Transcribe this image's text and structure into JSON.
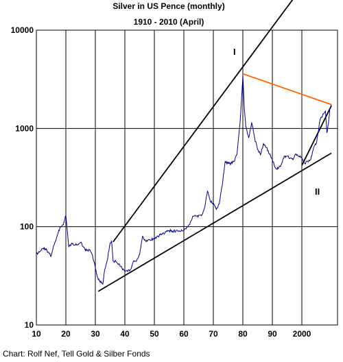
{
  "chart_data": {
    "type": "line",
    "title": "Silver in US Pence (monthly)",
    "subtitle": "1910 - 2010 (April)",
    "y_scale": "log",
    "ylim": [
      10,
      10000
    ],
    "xlim": [
      1910,
      2010
    ],
    "x_tick_labels": [
      "10",
      "20",
      "30",
      "40",
      "50",
      "60",
      "70",
      "80",
      "90",
      "2000"
    ],
    "x_tick_years": [
      1910,
      1920,
      1930,
      1940,
      1950,
      1960,
      1970,
      1980,
      1990,
      2000
    ],
    "y_tick_labels": [
      "10",
      "100",
      "1000",
      "10000"
    ],
    "y_tick_values": [
      10,
      100,
      1000,
      10000
    ],
    "grid": true,
    "series": [
      {
        "color": "#000080",
        "x": [
          1910,
          1911,
          1912,
          1913,
          1914,
          1915,
          1916,
          1917,
          1918,
          1919,
          1919.5,
          1920,
          1920.5,
          1921,
          1922,
          1923,
          1924,
          1925,
          1926,
          1927,
          1928,
          1929,
          1930,
          1931,
          1931.5,
          1932,
          1932.5,
          1933,
          1934,
          1935,
          1935.5,
          1936,
          1937,
          1938,
          1939,
          1940,
          1941,
          1942,
          1943,
          1944,
          1945,
          1946,
          1947,
          1948,
          1950,
          1952,
          1955,
          1958,
          1960,
          1962,
          1963,
          1964,
          1966,
          1967,
          1968,
          1969,
          1970,
          1971,
          1972,
          1973,
          1974,
          1975,
          1976,
          1977,
          1978,
          1979,
          1979.5,
          1980,
          1980.5,
          1981,
          1982,
          1983,
          1984,
          1985,
          1986,
          1987,
          1988,
          1989,
          1990,
          1991,
          1992,
          1993,
          1994,
          1995,
          1996,
          1997,
          1998,
          1999,
          2000,
          2001,
          2002,
          2003,
          2004,
          2005,
          2006,
          2006.5,
          2007,
          2008,
          2008.5,
          2009,
          2009.5,
          2010
        ],
        "y": [
          53,
          55,
          60,
          60,
          55,
          50,
          65,
          80,
          98,
          105,
          115,
          130,
          90,
          62,
          68,
          65,
          66,
          69,
          62,
          57,
          58,
          52,
          38,
          29,
          28,
          27,
          26,
          34,
          45,
          68,
          72,
          45,
          44,
          42,
          38,
          35,
          35,
          37,
          45,
          45,
          52,
          80,
          72,
          74,
          74,
          83,
          91,
          90,
          91,
          105,
          128,
          129,
          129,
          155,
          230,
          180,
          175,
          150,
          170,
          260,
          460,
          440,
          440,
          460,
          540,
          1100,
          1800,
          3500,
          1600,
          1050,
          800,
          1150,
          800,
          610,
          540,
          700,
          640,
          550,
          480,
          400,
          390,
          430,
          520,
          520,
          500,
          480,
          550,
          520,
          500,
          440,
          460,
          480,
          640,
          720,
          1150,
          1300,
          1350,
          1500,
          900,
          1100,
          1600,
          1750
        ]
      }
    ],
    "trendlines": [
      {
        "label": "I",
        "color": "#000000",
        "x": [
          1936,
          2001
        ],
        "y": [
          70,
          30000
        ]
      },
      {
        "label": "II",
        "color": "#000000",
        "x": [
          1931,
          2010
        ],
        "y": [
          22,
          560
        ]
      },
      {
        "color": "#ff6600",
        "x": [
          1980,
          2010
        ],
        "y": [
          3600,
          1750
        ]
      },
      {
        "color": "#000000",
        "x": [
          2000,
          2010
        ],
        "y": [
          420,
          1700
        ]
      }
    ],
    "annotations": [
      "I",
      "II"
    ],
    "credit": "Chart: Rolf Nef, Tell Gold & Silber Fonds"
  }
}
